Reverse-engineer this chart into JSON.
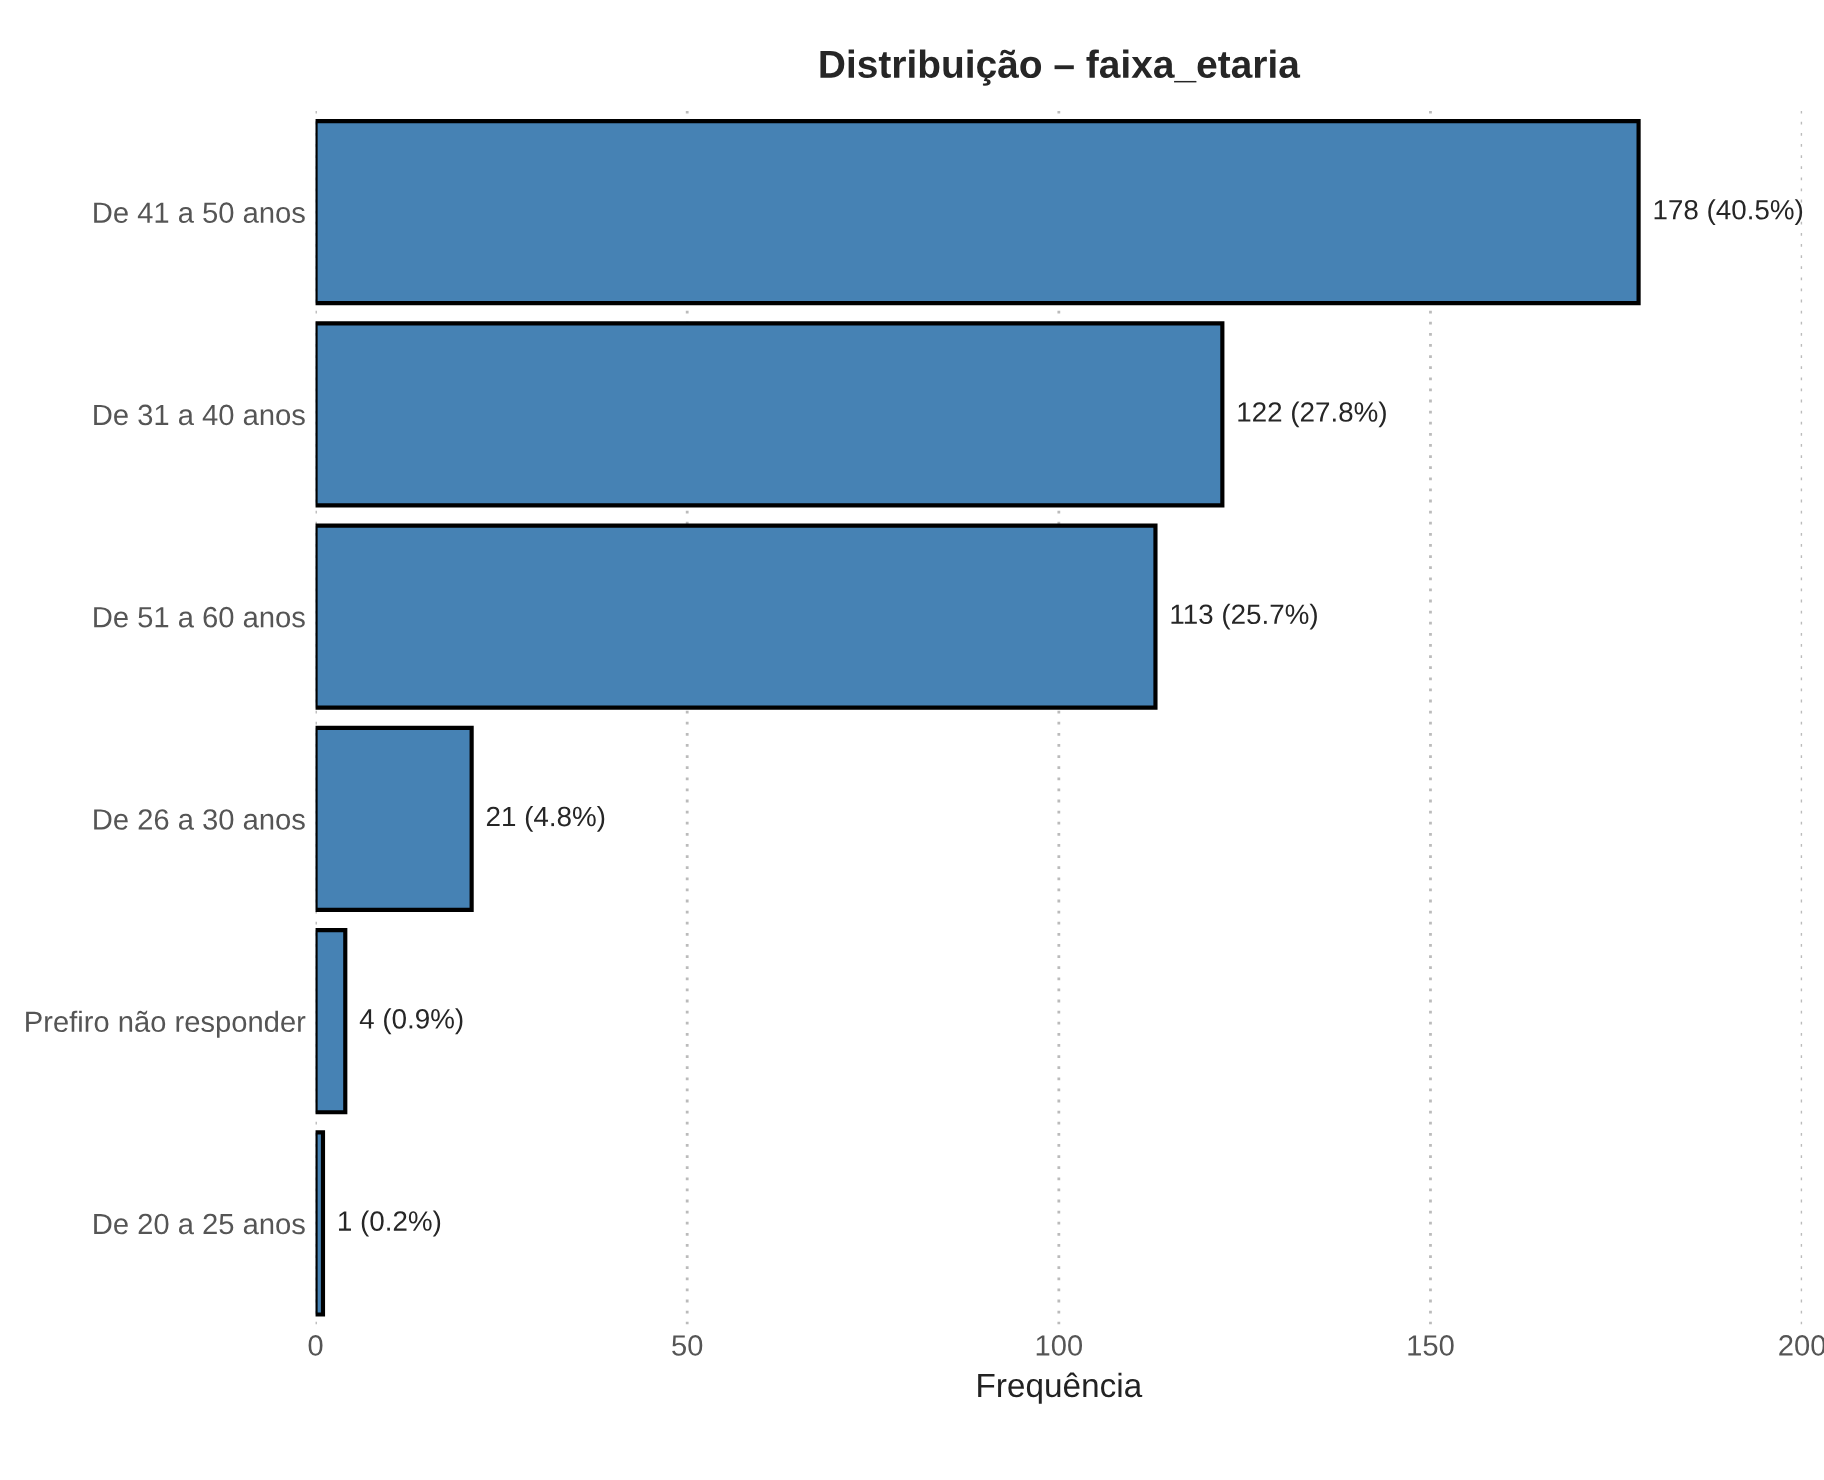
{
  "chart_data": {
    "type": "bar",
    "orientation": "horizontal",
    "title": "Distribuição – faixa_etaria",
    "xlabel": "Frequência",
    "categories": [
      "De 41 a 50 anos",
      "De 31 a 40 anos",
      "De 51 a 60 anos",
      "De 26 a 30 anos",
      "Prefiro não responder",
      "De 20 a 25 anos"
    ],
    "values": [
      178,
      122,
      113,
      21,
      4,
      1
    ],
    "value_labels": [
      "178 (40.5%)",
      "122 (27.8%)",
      "113 (25.7%)",
      "21 (4.8%)",
      "4 (0.9%)",
      "1 (0.2%)"
    ],
    "color": "#4682b4",
    "xlim": [
      0,
      200
    ],
    "xticks": [
      0,
      50,
      100,
      150,
      200
    ],
    "grid": "x",
    "legend": false
  }
}
